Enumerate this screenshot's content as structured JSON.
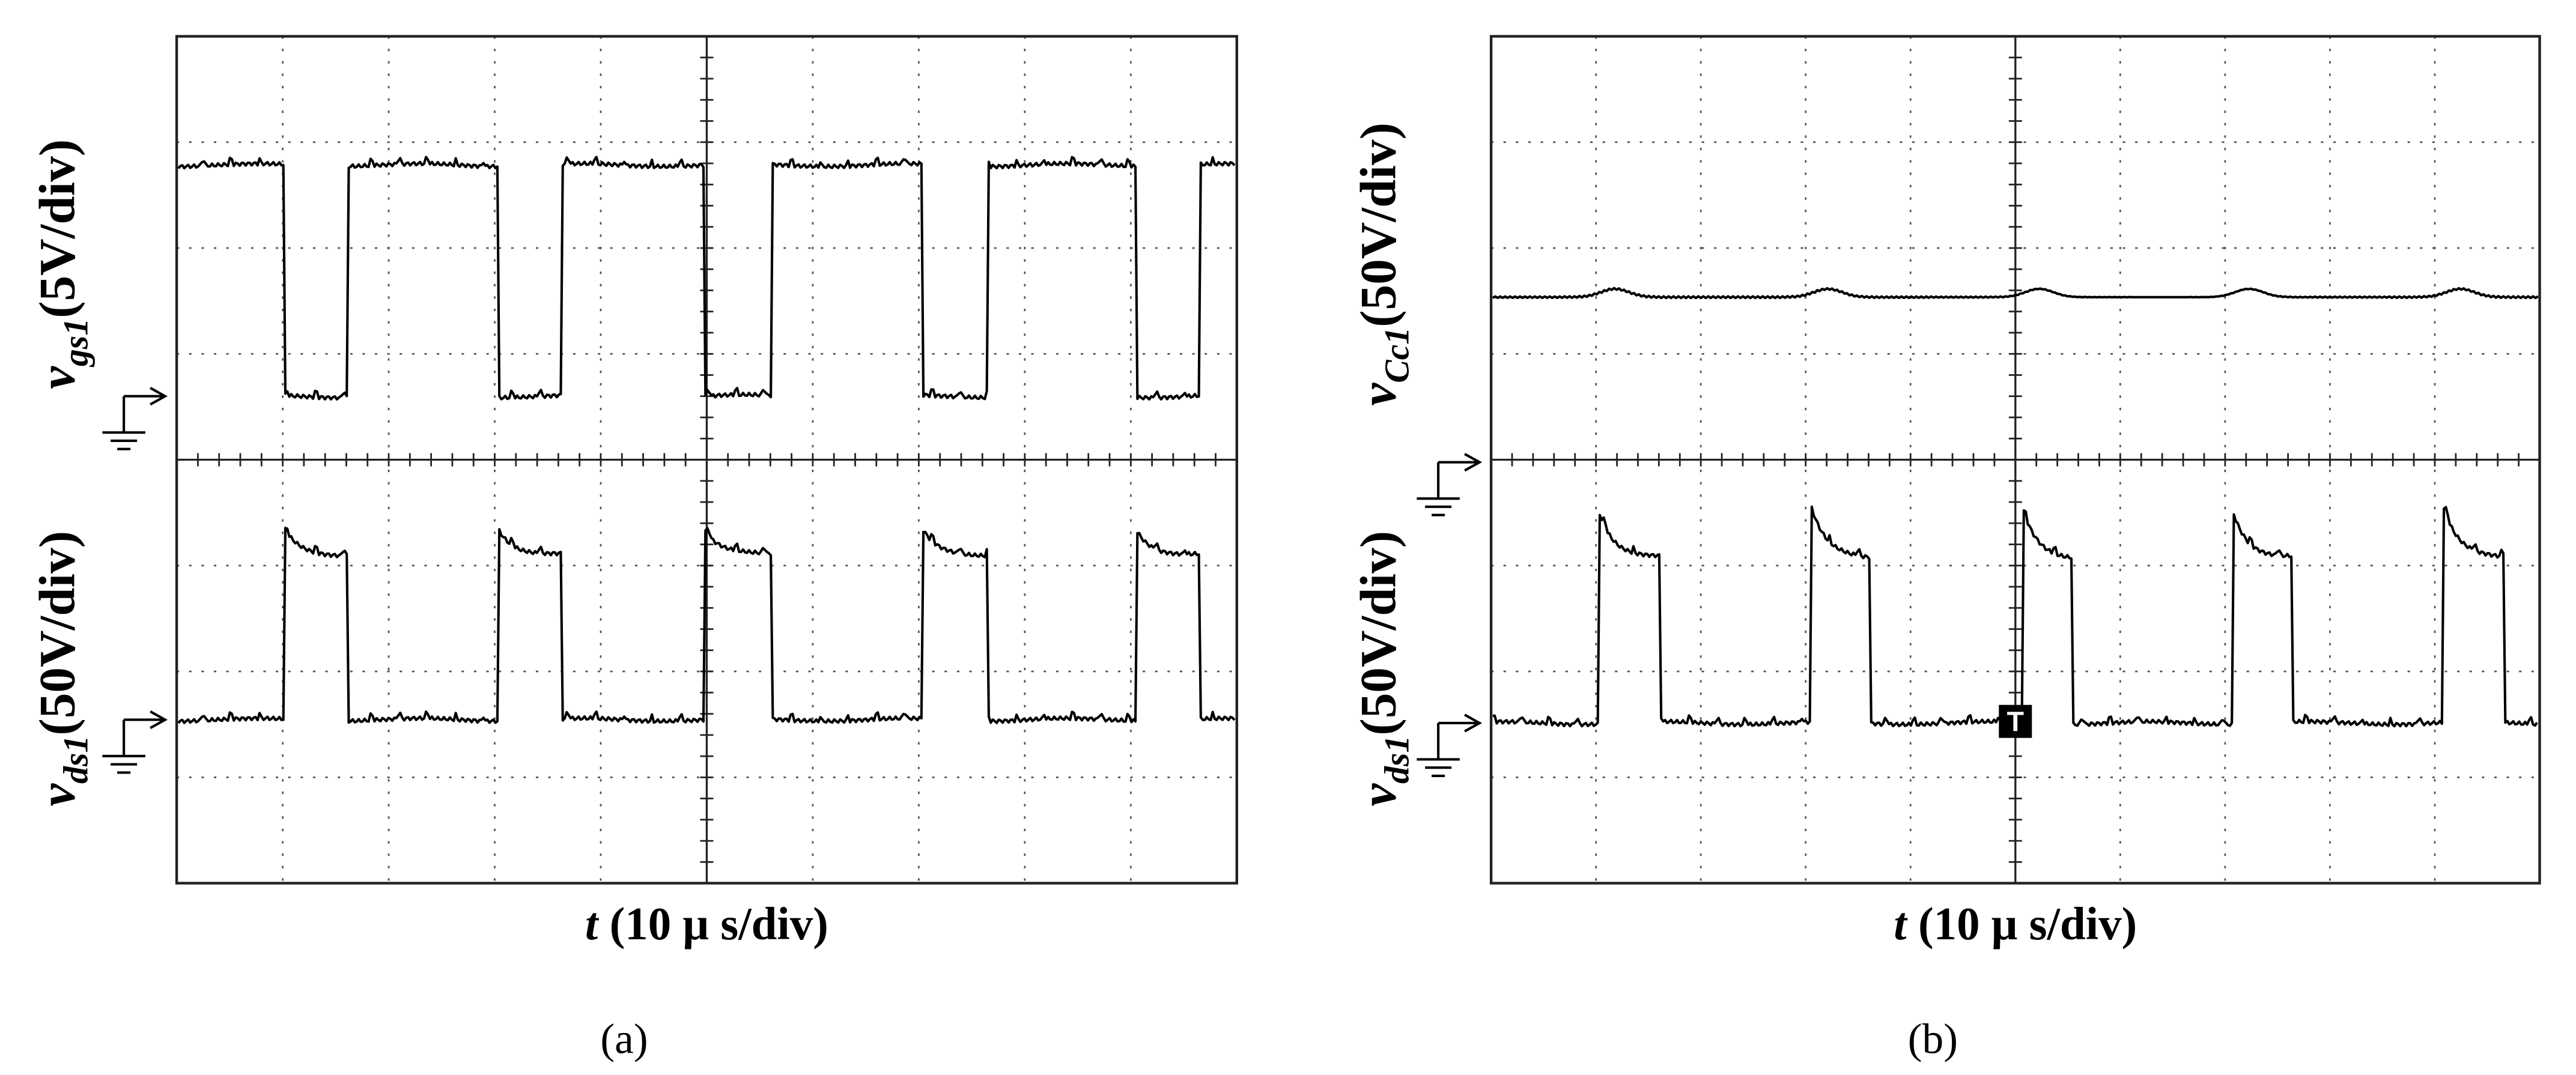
{
  "panels": [
    {
      "label": "(a)",
      "y_labels": [
        {
          "symbol": "v",
          "subscript": "gs1",
          "unit": "(5V/div)"
        },
        {
          "symbol": "v",
          "subscript": "ds1",
          "unit": "(50V/div)"
        }
      ],
      "x_label": {
        "symbol": "t",
        "unit": "(10 μ s/div)"
      }
    },
    {
      "label": "(b)",
      "y_labels": [
        {
          "symbol": "v",
          "subscript": "Cc1",
          "unit": "(50V/div)"
        },
        {
          "symbol": "v",
          "subscript": "ds1",
          "unit": "(50V/div)"
        }
      ],
      "x_label": {
        "symbol": "t",
        "unit": "(10 μ s/div)"
      },
      "trigger_marker": "T"
    }
  ]
}
